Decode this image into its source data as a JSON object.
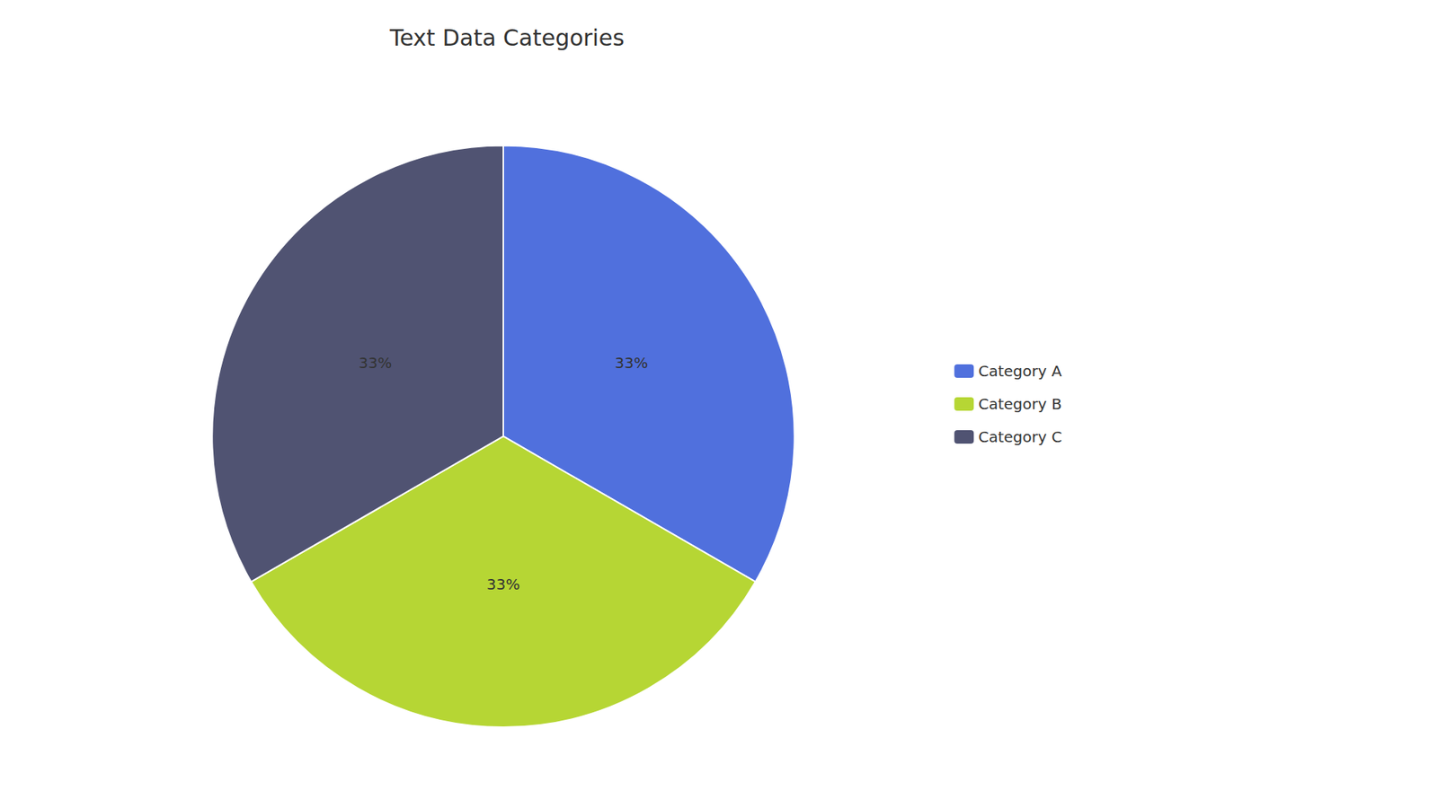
{
  "chart_data": {
    "type": "pie",
    "title": "Text Data Categories",
    "categories": [
      "Category A",
      "Category B",
      "Category C"
    ],
    "values": [
      33,
      33,
      33
    ],
    "value_labels": [
      "33%",
      "33%",
      "33%"
    ],
    "data_labels": true,
    "legend": "right"
  }
}
